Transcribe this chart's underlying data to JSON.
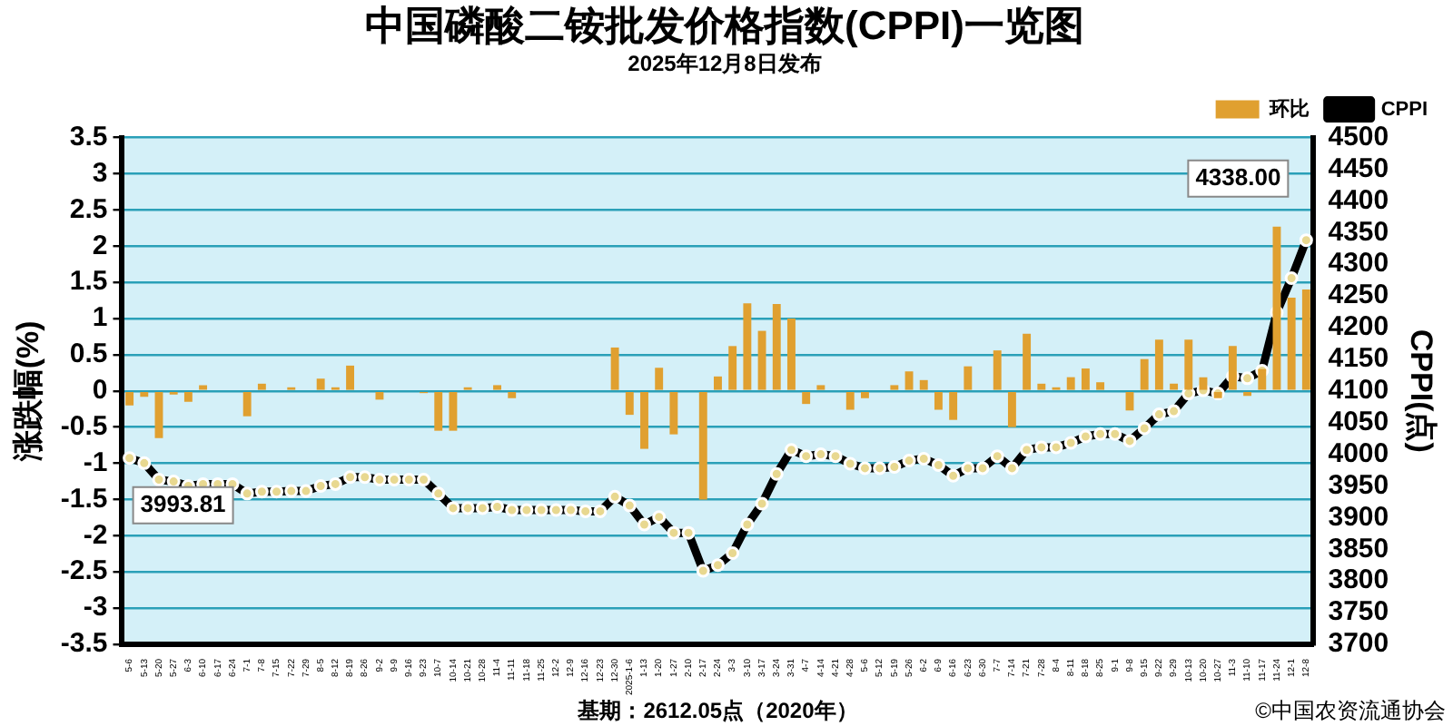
{
  "chart_data": {
    "type": "bar",
    "title": "中国磷酸二铵批发价格指数(CPPI)一览图",
    "subtitle": "2025年12月8日发布",
    "ylabel": "涨跌幅(%)",
    "y2label": "CPPI(点)",
    "categories": [
      "5-6",
      "5-13",
      "5-20",
      "5-27",
      "6-3",
      "6-10",
      "6-17",
      "6-24",
      "7-1",
      "7-8",
      "7-15",
      "7-22",
      "7-29",
      "8-5",
      "8-12",
      "8-19",
      "8-26",
      "9-2",
      "9-9",
      "9-16",
      "9-23",
      "10-7",
      "10-14",
      "10-21",
      "10-28",
      "11-4",
      "11-11",
      "11-18",
      "11-25",
      "12-2",
      "12-9",
      "12-16",
      "12-23",
      "12-30",
      "2025-1-6",
      "1-13",
      "1-20",
      "1-27",
      "2-10",
      "2-17",
      "2-24",
      "3-3",
      "3-10",
      "3-17",
      "3-24",
      "3-31",
      "4-7",
      "4-14",
      "4-21",
      "4-28",
      "5-6",
      "5-12",
      "5-19",
      "5-26",
      "6-2",
      "6-9",
      "6-16",
      "6-23",
      "6-30",
      "7-7",
      "7-14",
      "7-21",
      "7-28",
      "8-4",
      "8-11",
      "8-18",
      "8-25",
      "9-1",
      "9-8",
      "9-15",
      "9-22",
      "9-29",
      "10-13",
      "10-20",
      "10-27",
      "11-3",
      "11-10",
      "11-17",
      "11-24",
      "12-1",
      "12-8"
    ],
    "series": [
      {
        "name": "环比",
        "axis": "y",
        "color": "#e0a030",
        "values": [
          -0.2,
          -0.08,
          -0.65,
          -0.05,
          -0.15,
          0.08,
          0,
          null,
          -0.35,
          0.1,
          0,
          0.05,
          0,
          0.17,
          0.05,
          0.35,
          null,
          -0.12,
          0,
          0,
          -0.03,
          -0.55,
          -0.55,
          0.05,
          0,
          0.08,
          -0.1,
          0,
          0,
          0,
          0,
          0,
          null,
          0.6,
          -0.33,
          -0.8,
          0.32,
          -0.6,
          0,
          -1.5,
          0.2,
          0.62,
          1.21,
          0.83,
          1.2,
          1.0,
          -0.18,
          0.08,
          0,
          -0.26,
          -0.1,
          0,
          0.08,
          0.27,
          0.15,
          -0.26,
          -0.4,
          0.34,
          0,
          0.56,
          -0.5,
          0.79,
          0.1,
          0.05,
          0.19,
          0.31,
          0.12,
          0,
          -0.27,
          0.44,
          0.71,
          0.1,
          0.71,
          0.19,
          -0.1,
          0.62,
          -0.07,
          0.3,
          2.27,
          1.29,
          1.4
        ]
      },
      {
        "name": "CPPI",
        "type": "line",
        "axis": "y2",
        "color": "#000000",
        "values": [
          3994,
          3986,
          3960,
          3957,
          3950,
          3953,
          3953,
          3953,
          3938,
          3941,
          3941,
          3942,
          3942,
          3950,
          3953,
          3964,
          3964,
          3960,
          3960,
          3960,
          3960,
          3938,
          3915,
          3915,
          3915,
          3917,
          3912,
          3912,
          3912,
          3912,
          3912,
          3910,
          3910,
          3933,
          3919,
          3889,
          3901,
          3876,
          3876,
          3816,
          3825,
          3844,
          3889,
          3922,
          3969,
          4007,
          3997,
          4000,
          3997,
          3985,
          3978,
          3978,
          3980,
          3990,
          3993,
          3983,
          3966,
          3978,
          3978,
          3997,
          3978,
          4007,
          4011,
          4011,
          4018,
          4028,
          4032,
          4032,
          4021,
          4041,
          4063,
          4068,
          4096,
          4101,
          4096,
          4123,
          4120,
          4132,
          4224,
          4278,
          4338
        ]
      }
    ],
    "ylim": [
      -3.5,
      3.5
    ],
    "yticks": [
      -3.5,
      -3,
      -2.5,
      -2,
      -1.5,
      -1,
      -0.5,
      0,
      0.5,
      1,
      1.5,
      2,
      2.5,
      3,
      3.5
    ],
    "y2lim": [
      3700,
      4500
    ],
    "y2ticks": [
      3700,
      3750,
      3800,
      3850,
      3900,
      3950,
      4000,
      4050,
      4100,
      4150,
      4200,
      4250,
      4300,
      4350,
      4400,
      4450,
      4500
    ],
    "grid": "y",
    "legend": "top right",
    "marker": "circle",
    "line_style": "solid",
    "annotations": [
      "3993.81",
      "4338.00",
      "基期：2612.05点（2020年）",
      "©中国农资流通协会"
    ]
  }
}
